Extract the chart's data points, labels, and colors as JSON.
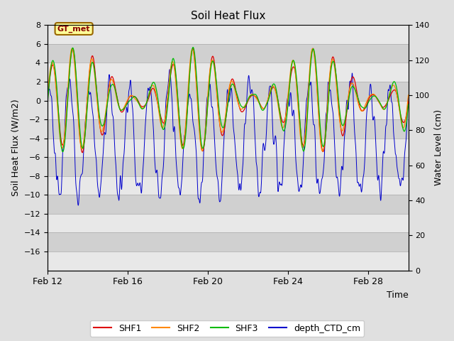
{
  "title": "Soil Heat Flux",
  "ylabel_left": "Soil Heat Flux (W/m2)",
  "ylabel_right": "Water Level (cm)",
  "xlabel": "Time",
  "ylim_left": [
    -18,
    8
  ],
  "ylim_right": [
    0,
    140
  ],
  "x_ticks_labels": [
    "Feb 12",
    "Feb 16",
    "Feb 20",
    "Feb 24",
    "Feb 28"
  ],
  "x_ticks_pos": [
    0,
    4,
    8,
    12,
    16
  ],
  "legend_labels": [
    "SHF1",
    "SHF2",
    "SHF3",
    "depth_CTD_cm"
  ],
  "legend_colors": [
    "#dd0000",
    "#ff8800",
    "#00bb00",
    "#0000cc"
  ],
  "box_label": "GT_met",
  "box_bg": "#ffff99",
  "box_border": "#996600",
  "box_text_color": "#880000",
  "shf1_color": "#dd0000",
  "shf2_color": "#ff8800",
  "shf3_color": "#00bb00",
  "ctd_color": "#0000cc",
  "bg_light": "#e8e8e8",
  "bg_dark": "#d0d0d0",
  "fig_bg": "#e0e0e0"
}
